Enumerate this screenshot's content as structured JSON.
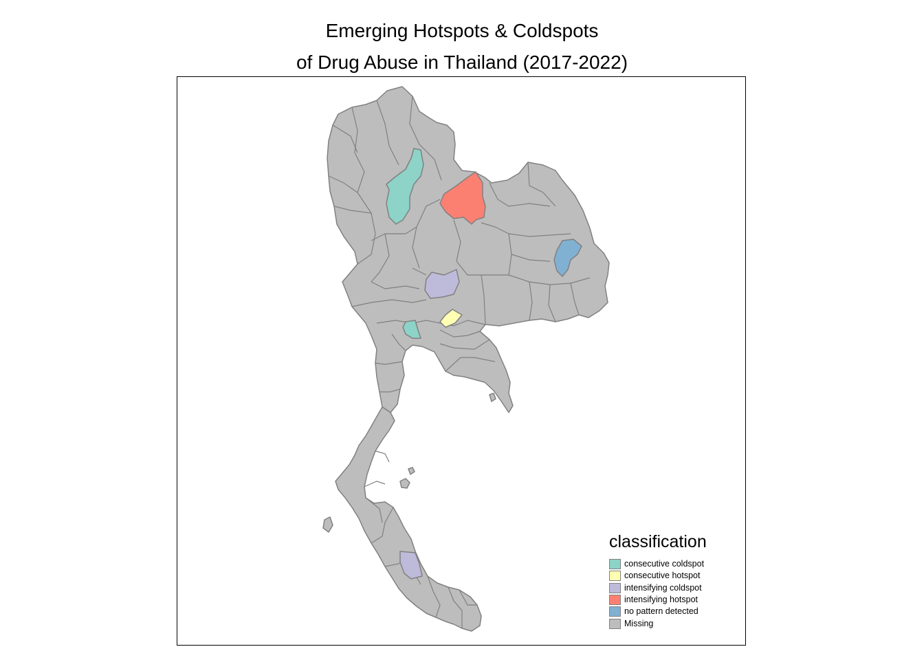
{
  "title": {
    "line1": "Emerging Hotspots & Coldspots",
    "line2": "of Drug Abuse in Thailand (2017-2022)"
  },
  "legend": {
    "title": "classification",
    "items": [
      {
        "label": "consecutive coldspot",
        "color": "#8DD3C7"
      },
      {
        "label": "consecutive hotspot",
        "color": "#FFFFB3"
      },
      {
        "label": "intensifying coldspot",
        "color": "#BEBADA"
      },
      {
        "label": "intensifying hotspot",
        "color": "#FB8072"
      },
      {
        "label": "no pattern detected",
        "color": "#80B1D3"
      },
      {
        "label": "Missing",
        "color": "#BDBDBD"
      }
    ]
  },
  "map": {
    "region": "Thailand provinces",
    "border_color": "#808080"
  }
}
